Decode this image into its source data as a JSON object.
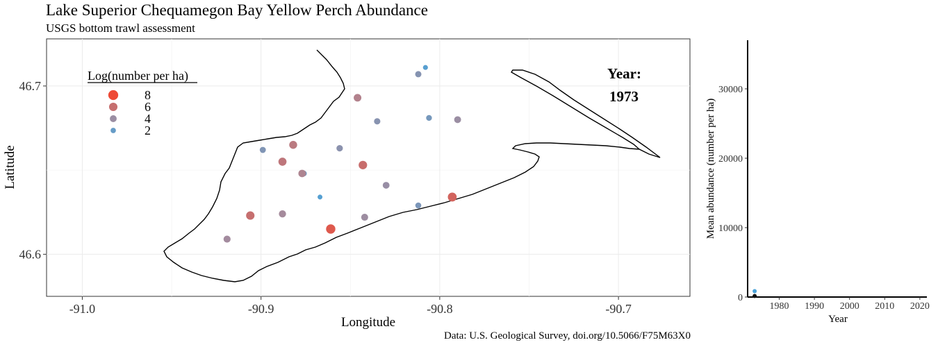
{
  "title": "Lake Superior Chequamegon Bay Yellow Perch Abundance",
  "subtitle": "USGS bottom trawl assessment",
  "caption": "Data: U.S. Geological Survey, doi.org/10.5066/F75M63X0",
  "colors": {
    "low": "#4ba3d9",
    "mid": "#a88a9a",
    "high": "#ee4a36",
    "grid": "#ebebeb"
  },
  "chart_data": [
    {
      "type": "scatter",
      "title": "",
      "xlabel": "Longitude",
      "ylabel": "Latitude",
      "xlim": [
        -91.02,
        -90.66
      ],
      "ylim": [
        46.575,
        46.728
      ],
      "xticks": [
        -91.0,
        -90.9,
        -90.8,
        -90.7
      ],
      "xtick_labels": [
        "-91.0",
        "-90.9",
        "-90.8",
        "-90.7"
      ],
      "yticks": [
        46.6,
        46.7
      ],
      "ytick_labels": [
        "46.6",
        "46.7"
      ],
      "grid": true,
      "legend": {
        "title": "Log(number per ha)",
        "position": "top-left",
        "entries": [
          {
            "label": "8",
            "value": 8
          },
          {
            "label": "6",
            "value": 6
          },
          {
            "label": "4",
            "value": 4
          },
          {
            "label": "2",
            "value": 2
          }
        ]
      },
      "annotation": {
        "label": "Year:",
        "value": "1973"
      },
      "points": [
        {
          "lon": -90.808,
          "lat": 46.711,
          "log_n": 1.5
        },
        {
          "lon": -90.812,
          "lat": 46.707,
          "log_n": 3.2
        },
        {
          "lon": -90.846,
          "lat": 46.693,
          "log_n": 5.0
        },
        {
          "lon": -90.806,
          "lat": 46.681,
          "log_n": 2.6
        },
        {
          "lon": -90.79,
          "lat": 46.68,
          "log_n": 4.0
        },
        {
          "lon": -90.835,
          "lat": 46.679,
          "log_n": 3.3
        },
        {
          "lon": -90.882,
          "lat": 46.665,
          "log_n": 5.4
        },
        {
          "lon": -90.899,
          "lat": 46.662,
          "log_n": 3.0
        },
        {
          "lon": -90.856,
          "lat": 46.663,
          "log_n": 3.4
        },
        {
          "lon": -90.888,
          "lat": 46.655,
          "log_n": 5.6
        },
        {
          "lon": -90.843,
          "lat": 46.653,
          "log_n": 6.1
        },
        {
          "lon": -90.876,
          "lat": 46.648,
          "log_n": 2.5
        },
        {
          "lon": -90.877,
          "lat": 46.648,
          "log_n": 4.8
        },
        {
          "lon": -90.83,
          "lat": 46.641,
          "log_n": 3.9
        },
        {
          "lon": -90.867,
          "lat": 46.634,
          "log_n": 1.4
        },
        {
          "lon": -90.793,
          "lat": 46.634,
          "log_n": 6.6
        },
        {
          "lon": -90.812,
          "lat": 46.629,
          "log_n": 2.8
        },
        {
          "lon": -90.888,
          "lat": 46.624,
          "log_n": 4.4
        },
        {
          "lon": -90.906,
          "lat": 46.623,
          "log_n": 6.0
        },
        {
          "lon": -90.842,
          "lat": 46.622,
          "log_n": 4.1
        },
        {
          "lon": -90.861,
          "lat": 46.615,
          "log_n": 7.2
        },
        {
          "lon": -90.919,
          "lat": 46.609,
          "log_n": 4.3
        }
      ]
    },
    {
      "type": "scatter",
      "title": "",
      "xlabel": "Year",
      "ylabel": "Mean abundance (number per ha)",
      "xlim": [
        1971,
        2022
      ],
      "ylim": [
        0,
        37000
      ],
      "xticks": [
        1980,
        1990,
        2000,
        2010,
        2020
      ],
      "xtick_labels": [
        "1980",
        "1990",
        "2000",
        "2010",
        "2020"
      ],
      "yticks": [
        0,
        10000,
        20000,
        30000
      ],
      "ytick_labels": [
        "0",
        "10000",
        "20000",
        "30000"
      ],
      "grid": false,
      "series": [
        {
          "points": [
            {
              "x": 1973,
              "y": 850,
              "color": "#4ba3d9"
            },
            {
              "x": 1973,
              "y": 150,
              "color": "#111111"
            }
          ]
        }
      ]
    }
  ]
}
